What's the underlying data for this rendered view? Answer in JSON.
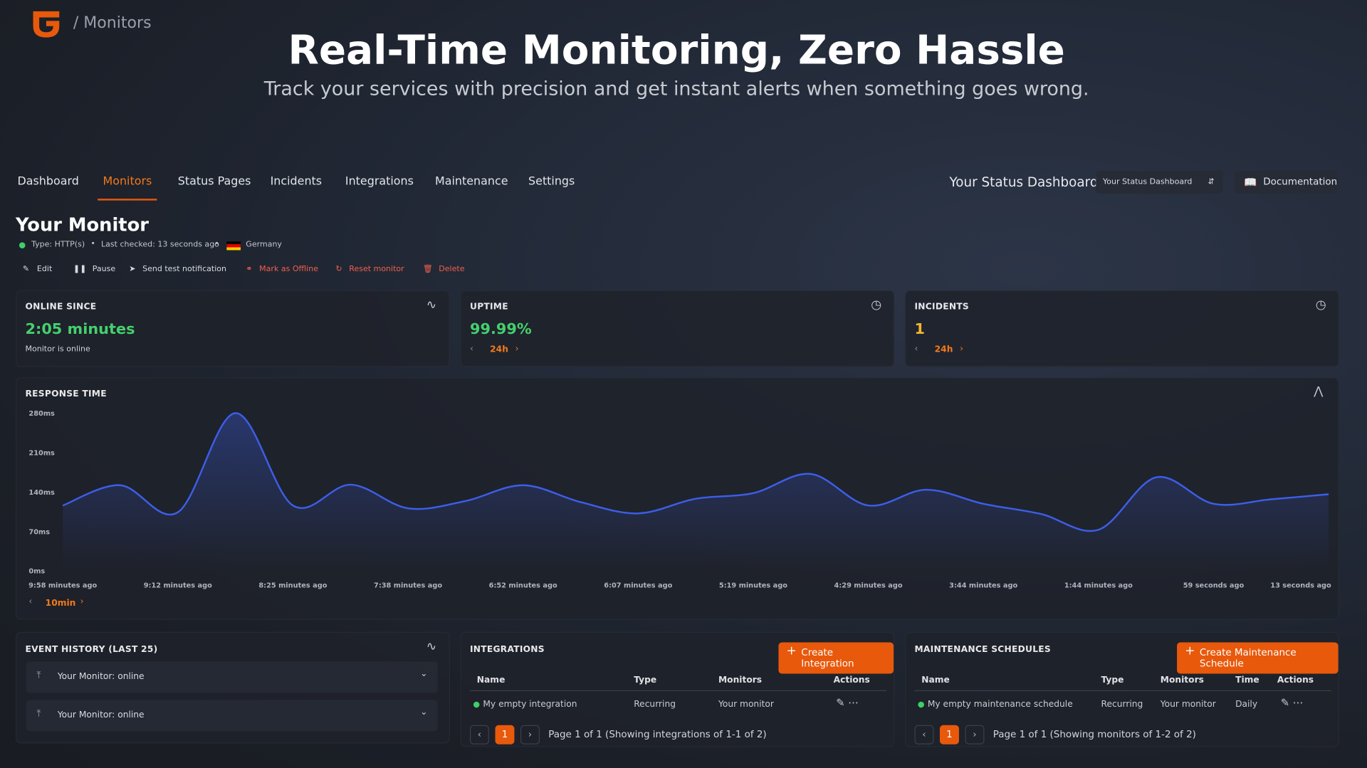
{
  "header": {
    "breadcrumb": "/ Monitors"
  },
  "hero": {
    "title": "Real-Time Monitoring, Zero Hassle",
    "subtitle": "Track your services with precision and get instant alerts when something goes wrong."
  },
  "nav": {
    "tabs": [
      "Dashboard",
      "Monitors",
      "Status Pages",
      "Incidents",
      "Integrations",
      "Maintenance",
      "Settings"
    ],
    "status_title": "Your Status Dashboard",
    "status_select": "Your Status Dashboard",
    "documentation": "Documentation"
  },
  "monitor": {
    "name": "Your Monitor",
    "type": "Type: HTTP(s)",
    "last_checked": "Last checked: 13 seconds ago",
    "location": "Germany",
    "actions": [
      "Edit",
      "Pause",
      "Send test notification",
      "Mark as Offline",
      "Reset monitor",
      "Delete"
    ]
  },
  "stats": [
    {
      "label": "ONLINE SINCE",
      "value": "2:05 minutes",
      "note": "Monitor is online"
    },
    {
      "label": "UPTIME",
      "value": "99.99%",
      "period": "24h"
    },
    {
      "label": "INCIDENTS",
      "value": "1",
      "period": "24h"
    }
  ],
  "chart_data": {
    "type": "line",
    "title": "RESPONSE TIME",
    "range": "10min",
    "color": "#3d5ee8",
    "categories": [
      "9:58 minutes ago",
      null,
      "9:12 minutes ago",
      null,
      "8:25 minutes ago",
      null,
      "7:38 minutes ago",
      null,
      "6:52 minutes ago",
      null,
      "6:07 minutes ago",
      null,
      "5:19 minutes ago",
      null,
      "4:29 minutes ago",
      null,
      "3:44 minutes ago",
      null,
      "1:44 minutes ago",
      null,
      "59 seconds ago",
      null,
      "13 seconds ago"
    ],
    "values": [
      116,
      152,
      104,
      280,
      116,
      153,
      111,
      124,
      152,
      122,
      102,
      128,
      138,
      172,
      116,
      144,
      119,
      101,
      73,
      166,
      119,
      127,
      136
    ],
    "ylim": [
      0,
      280
    ],
    "yticks": [
      {
        "value": 0,
        "label": "0ms"
      },
      {
        "value": 70,
        "label": "70ms"
      },
      {
        "value": 140,
        "label": "140ms"
      },
      {
        "value": 210,
        "label": "210ms"
      },
      {
        "value": 280,
        "label": "280ms"
      }
    ]
  },
  "events": {
    "title": "EVENT HISTORY (LAST 25)",
    "items": [
      "Your Monitor: online",
      "Your Monitor: online"
    ]
  },
  "integrations": {
    "title": "INTEGRATIONS",
    "button": "Create Integration",
    "columns": [
      "Name",
      "Type",
      "Monitors",
      "Actions"
    ],
    "rows": [
      [
        "My empty integration",
        "Recurring",
        "Your monitor"
      ]
    ],
    "page": "1",
    "summary": "Page 1 of 1 (Showing integrations of 1-1 of 2)"
  },
  "maintenance": {
    "title": "MAINTENANCE SCHEDULES",
    "button": "Create Maintenance Schedule",
    "columns": [
      "Name",
      "Type",
      "Monitors",
      "Time",
      "Actions"
    ],
    "rows": [
      [
        "My empty maintenance schedule",
        "Recurring",
        "Your monitor",
        "Daily"
      ]
    ],
    "page": "1",
    "summary": "Page 1 of 1 (Showing monitors of 1-2 of 2)"
  }
}
